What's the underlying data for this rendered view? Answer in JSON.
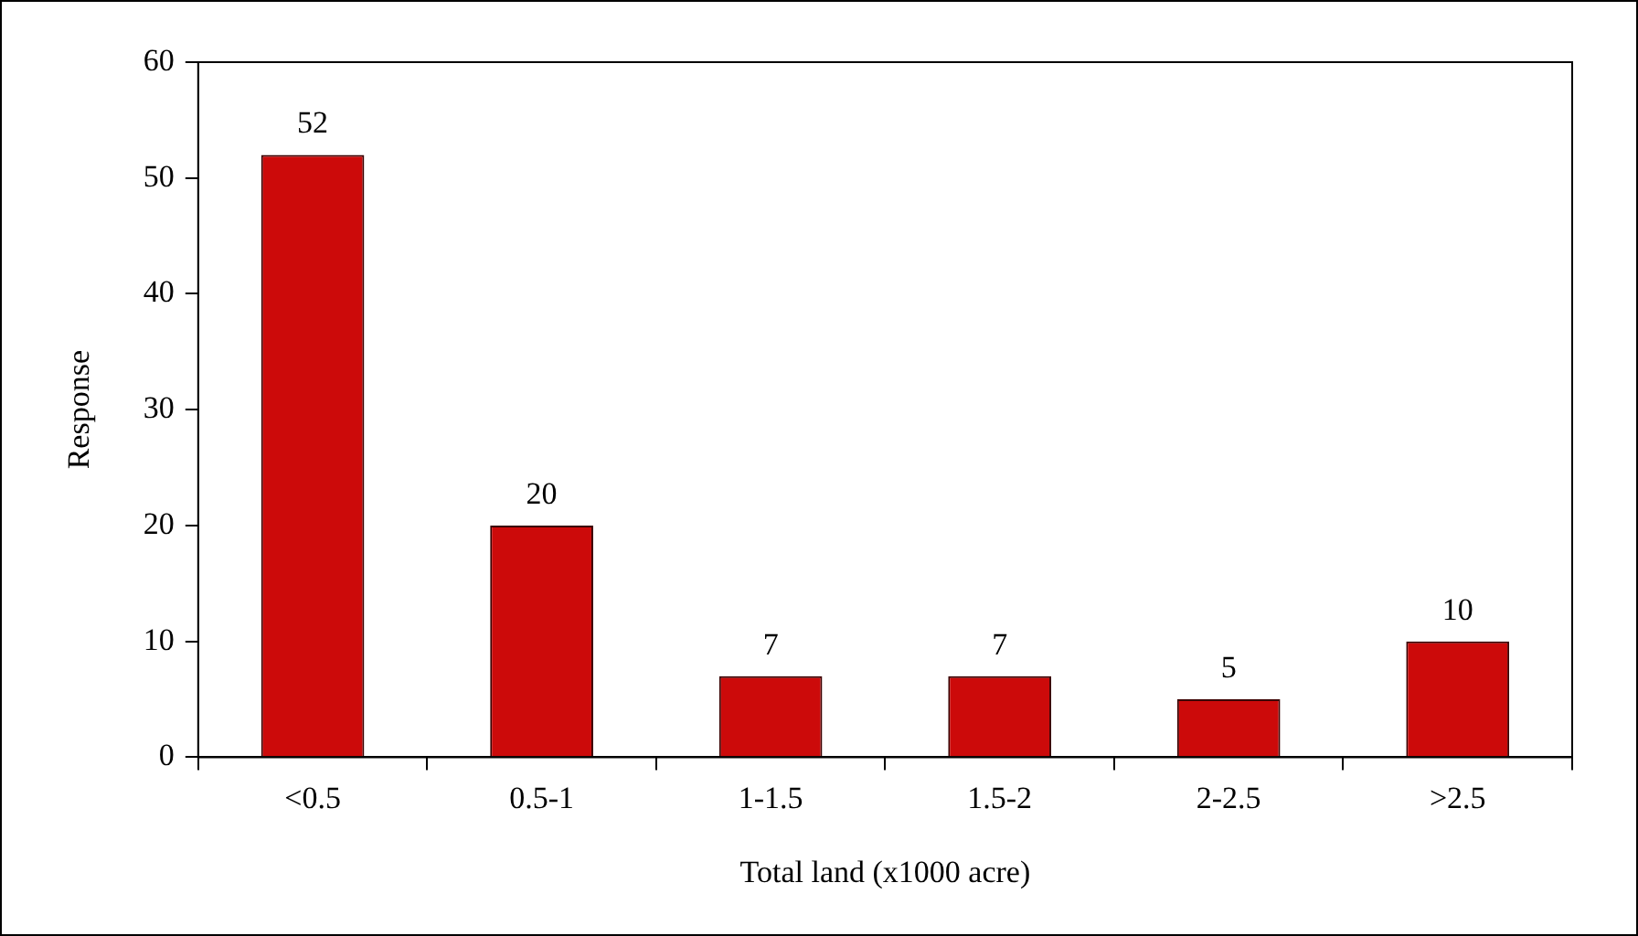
{
  "chart_data": {
    "type": "bar",
    "xlabel": "Total land (x1000 acre)",
    "ylabel": "Response",
    "categories": [
      "<0.5",
      "0.5-1",
      "1-1.5",
      "1.5-2",
      "2-2.5",
      ">2.5"
    ],
    "values": [
      52,
      20,
      7,
      7,
      5,
      10
    ],
    "color": "#cc0a0a",
    "ylim": [
      0,
      60
    ],
    "yticks": [
      0,
      10,
      20,
      30,
      40,
      50,
      60
    ],
    "grid": false,
    "data_labels": true,
    "legend": false
  }
}
